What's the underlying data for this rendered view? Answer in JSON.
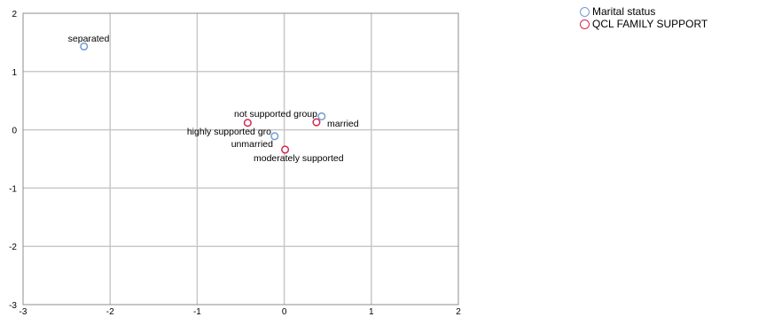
{
  "chart_data": {
    "type": "scatter",
    "title": "",
    "xlabel": "",
    "ylabel": "",
    "xlim": [
      -3,
      2
    ],
    "ylim": [
      -3,
      2
    ],
    "x_ticks": [
      "-3",
      "-2",
      "-1",
      "0",
      "1",
      "2"
    ],
    "y_ticks": [
      "2",
      "1",
      "0",
      "-1",
      "-2",
      "-3"
    ],
    "grid": true,
    "legend_position": "top-right",
    "series": [
      {
        "name": "Marital status",
        "color": "#6f9bd4",
        "points": [
          {
            "label": "separated",
            "x": -2.3,
            "y": 1.43
          },
          {
            "label": "married",
            "x": 0.43,
            "y": 0.23
          },
          {
            "label": "unmarried",
            "x": -0.11,
            "y": -0.11
          }
        ]
      },
      {
        "name": "QCL FAMILY SUPPORT",
        "color": "#d6284f",
        "points": [
          {
            "label": "not supported group",
            "x": -0.42,
            "y": 0.12
          },
          {
            "label": "highly supported gro",
            "x": 0.37,
            "y": 0.13
          },
          {
            "label": "moderately supported",
            "x": 0.01,
            "y": -0.34
          }
        ]
      }
    ]
  }
}
